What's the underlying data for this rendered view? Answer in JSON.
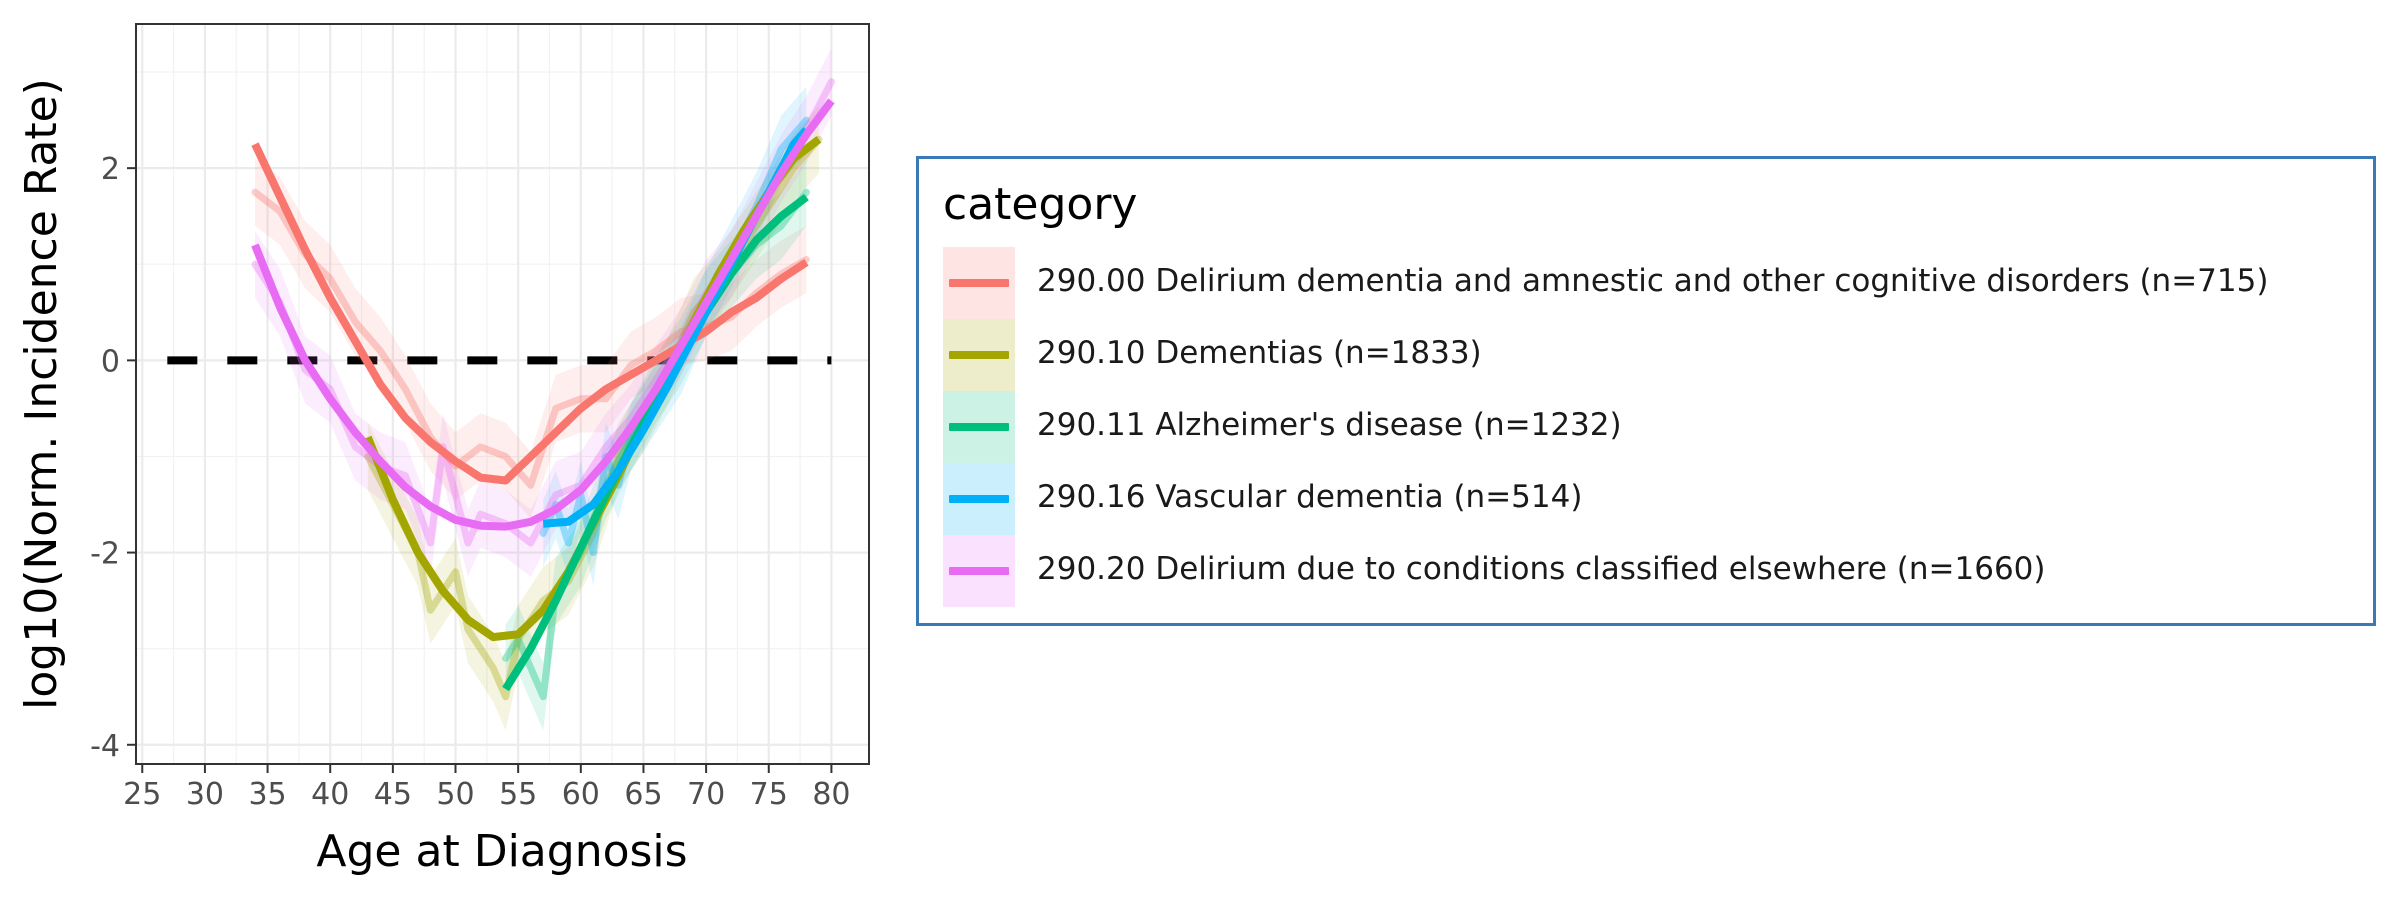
{
  "chart_data": {
    "type": "line",
    "title": "",
    "xlabel": "Age at Diagnosis",
    "ylabel": "log10(Norm. Incidence Rate)",
    "xlim": [
      24.5,
      83
    ],
    "ylim": [
      -4.2,
      3.5
    ],
    "x_ticks": [
      "25",
      "30",
      "35",
      "40",
      "45",
      "50",
      "55",
      "60",
      "65",
      "70",
      "75",
      "80"
    ],
    "y_ticks": [
      "-4",
      "-2",
      "0",
      "2"
    ],
    "grid": true,
    "reference_line": {
      "y": 0,
      "x_range": [
        27,
        80
      ],
      "style": "dashed",
      "color": "#000000"
    },
    "legend": {
      "title": "category",
      "placement": "right"
    },
    "series": [
      {
        "name": "290.00 Delirium dementia and amnestic and other cognitive disorders (n=715)",
        "color": "#F8766D",
        "smooth": [
          [
            34,
            2.25
          ],
          [
            36,
            1.7
          ],
          [
            38,
            1.15
          ],
          [
            40,
            0.65
          ],
          [
            42,
            0.2
          ],
          [
            44,
            -0.25
          ],
          [
            46,
            -0.6
          ],
          [
            48,
            -0.85
          ],
          [
            50,
            -1.05
          ],
          [
            52,
            -1.22
          ],
          [
            54,
            -1.25
          ],
          [
            56,
            -1.0
          ],
          [
            58,
            -0.75
          ],
          [
            60,
            -0.5
          ],
          [
            62,
            -0.3
          ],
          [
            64,
            -0.15
          ],
          [
            66,
            0.0
          ],
          [
            68,
            0.15
          ],
          [
            70,
            0.3
          ],
          [
            72,
            0.5
          ],
          [
            74,
            0.65
          ],
          [
            76,
            0.85
          ],
          [
            78,
            1.02
          ]
        ],
        "raw": [
          [
            34,
            1.75
          ],
          [
            36,
            1.55
          ],
          [
            38,
            1.1
          ],
          [
            40,
            0.85
          ],
          [
            42,
            0.4
          ],
          [
            44,
            0.1
          ],
          [
            46,
            -0.3
          ],
          [
            48,
            -0.8
          ],
          [
            50,
            -1.1
          ],
          [
            52,
            -0.9
          ],
          [
            54,
            -1.0
          ],
          [
            56,
            -1.3
          ],
          [
            58,
            -0.5
          ],
          [
            60,
            -0.4
          ],
          [
            62,
            -0.4
          ],
          [
            64,
            -0.05
          ],
          [
            66,
            0.1
          ],
          [
            68,
            0.3
          ],
          [
            70,
            0.35
          ],
          [
            72,
            0.45
          ],
          [
            74,
            0.7
          ],
          [
            76,
            0.9
          ],
          [
            78,
            1.05
          ]
        ]
      },
      {
        "name": "290.10 Dementias (n=1833)",
        "color": "#A3A500",
        "smooth": [
          [
            43,
            -0.8
          ],
          [
            45,
            -1.45
          ],
          [
            47,
            -2.0
          ],
          [
            49,
            -2.4
          ],
          [
            51,
            -2.7
          ],
          [
            53,
            -2.88
          ],
          [
            55,
            -2.85
          ],
          [
            57,
            -2.6
          ],
          [
            59,
            -2.2
          ],
          [
            61,
            -1.7
          ],
          [
            63,
            -1.2
          ],
          [
            65,
            -0.65
          ],
          [
            67,
            -0.1
          ],
          [
            69,
            0.4
          ],
          [
            71,
            0.9
          ],
          [
            73,
            1.35
          ],
          [
            75,
            1.75
          ],
          [
            77,
            2.1
          ],
          [
            79,
            2.3
          ]
        ],
        "raw": [
          [
            43,
            -1.0
          ],
          [
            45,
            -1.5
          ],
          [
            47,
            -2.0
          ],
          [
            48,
            -2.6
          ],
          [
            50,
            -2.2
          ],
          [
            51,
            -2.8
          ],
          [
            53,
            -3.2
          ],
          [
            54,
            -3.5
          ],
          [
            55,
            -2.9
          ],
          [
            57,
            -2.5
          ],
          [
            59,
            -2.3
          ],
          [
            61,
            -1.8
          ],
          [
            63,
            -1.0
          ],
          [
            65,
            -0.6
          ],
          [
            67,
            -0.1
          ],
          [
            69,
            0.5
          ],
          [
            71,
            0.8
          ],
          [
            73,
            1.2
          ],
          [
            75,
            1.6
          ],
          [
            77,
            2.0
          ],
          [
            79,
            2.3
          ]
        ]
      },
      {
        "name": "290.11 Alzheimer's disease (n=1232)",
        "color": "#00BF7D",
        "smooth": [
          [
            54,
            -3.42
          ],
          [
            56,
            -3.0
          ],
          [
            58,
            -2.5
          ],
          [
            60,
            -1.95
          ],
          [
            62,
            -1.4
          ],
          [
            64,
            -0.9
          ],
          [
            66,
            -0.4
          ],
          [
            68,
            0.1
          ],
          [
            70,
            0.5
          ],
          [
            72,
            0.9
          ],
          [
            74,
            1.25
          ],
          [
            76,
            1.5
          ],
          [
            78,
            1.7
          ]
        ],
        "raw": [
          [
            54,
            -3.1
          ],
          [
            55,
            -2.9
          ],
          [
            56,
            -3.2
          ],
          [
            57,
            -3.5
          ],
          [
            58,
            -2.4
          ],
          [
            60,
            -2.0
          ],
          [
            62,
            -1.3
          ],
          [
            64,
            -0.8
          ],
          [
            66,
            -0.3
          ],
          [
            68,
            0.1
          ],
          [
            70,
            0.6
          ],
          [
            72,
            0.9
          ],
          [
            74,
            1.2
          ],
          [
            76,
            1.4
          ],
          [
            78,
            1.75
          ]
        ]
      },
      {
        "name": "290.16 Vascular dementia (n=514)",
        "color": "#00B0F6",
        "smooth": [
          [
            57,
            -1.7
          ],
          [
            59,
            -1.68
          ],
          [
            61,
            -1.5
          ],
          [
            63,
            -1.15
          ],
          [
            65,
            -0.72
          ],
          [
            67,
            -0.25
          ],
          [
            69,
            0.25
          ],
          [
            71,
            0.75
          ],
          [
            73,
            1.25
          ],
          [
            75,
            1.75
          ],
          [
            77,
            2.25
          ],
          [
            78,
            2.4
          ]
        ],
        "raw": [
          [
            57,
            -1.8
          ],
          [
            58,
            -1.5
          ],
          [
            59,
            -1.9
          ],
          [
            60,
            -1.4
          ],
          [
            61,
            -2.0
          ],
          [
            62,
            -1.0
          ],
          [
            63,
            -1.3
          ],
          [
            64,
            -0.8
          ],
          [
            66,
            -0.4
          ],
          [
            68,
            0.0
          ],
          [
            70,
            0.6
          ],
          [
            72,
            1.1
          ],
          [
            74,
            1.6
          ],
          [
            76,
            2.2
          ],
          [
            78,
            2.5
          ]
        ]
      },
      {
        "name": "290.20 Delirium due to conditions classified elsewhere (n=1660)",
        "color": "#E76BF3",
        "smooth": [
          [
            34,
            1.2
          ],
          [
            36,
            0.55
          ],
          [
            38,
            0.0
          ],
          [
            40,
            -0.4
          ],
          [
            42,
            -0.75
          ],
          [
            44,
            -1.05
          ],
          [
            46,
            -1.32
          ],
          [
            48,
            -1.52
          ],
          [
            50,
            -1.66
          ],
          [
            52,
            -1.72
          ],
          [
            54,
            -1.73
          ],
          [
            56,
            -1.68
          ],
          [
            58,
            -1.55
          ],
          [
            60,
            -1.35
          ],
          [
            62,
            -1.05
          ],
          [
            64,
            -0.7
          ],
          [
            66,
            -0.3
          ],
          [
            68,
            0.15
          ],
          [
            70,
            0.6
          ],
          [
            72,
            1.05
          ],
          [
            74,
            1.5
          ],
          [
            76,
            1.95
          ],
          [
            78,
            2.35
          ],
          [
            80,
            2.7
          ]
        ],
        "raw": [
          [
            34,
            1.0
          ],
          [
            36,
            0.6
          ],
          [
            38,
            -0.1
          ],
          [
            40,
            -0.3
          ],
          [
            42,
            -0.9
          ],
          [
            44,
            -1.1
          ],
          [
            46,
            -1.2
          ],
          [
            48,
            -1.9
          ],
          [
            49,
            -0.9
          ],
          [
            50,
            -1.4
          ],
          [
            51,
            -1.9
          ],
          [
            52,
            -1.6
          ],
          [
            54,
            -1.7
          ],
          [
            56,
            -1.9
          ],
          [
            58,
            -1.4
          ],
          [
            60,
            -1.3
          ],
          [
            62,
            -0.9
          ],
          [
            64,
            -0.6
          ],
          [
            66,
            -0.2
          ],
          [
            68,
            0.2
          ],
          [
            70,
            0.7
          ],
          [
            72,
            1.0
          ],
          [
            74,
            1.5
          ],
          [
            76,
            2.0
          ],
          [
            78,
            2.4
          ],
          [
            80,
            2.9
          ]
        ]
      }
    ]
  }
}
